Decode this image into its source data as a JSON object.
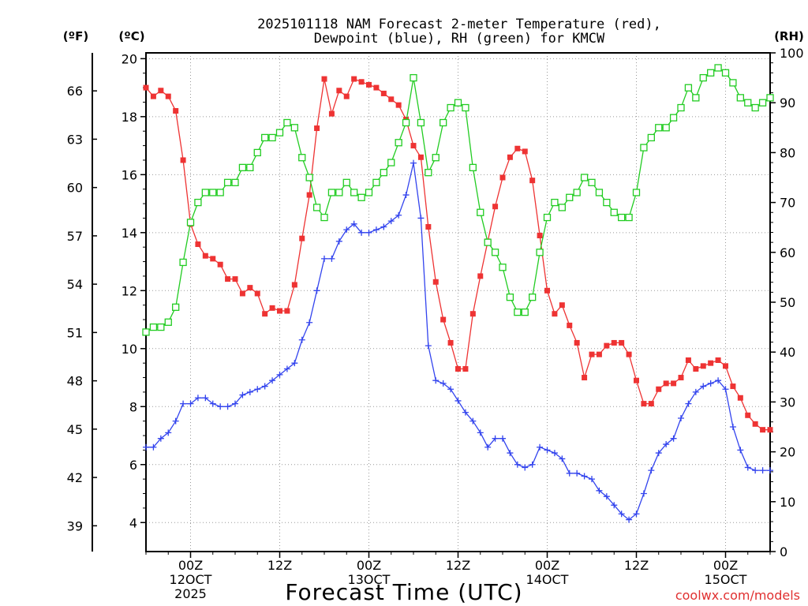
{
  "chart_data": {
    "type": "line",
    "title_line1": "2025101118 NAM Forecast 2-meter Temperature (red),",
    "title_line2": "Dewpoint (blue), RH (green) for KMCW",
    "xlabel": "Forecast Time (UTC)",
    "credit": "coolwx.com/models",
    "unit_f": "(ºF)",
    "unit_c": "(ºC)",
    "unit_rh": "(RH)",
    "forecast_hour_range": [
      0,
      84
    ],
    "ylim_c": [
      3.0,
      20.2
    ],
    "ylim_rh": [
      0,
      100
    ],
    "yticks_c": [
      "4",
      "6",
      "8",
      "10",
      "12",
      "14",
      "16",
      "18",
      "20"
    ],
    "yticks_f": [
      "39",
      "42",
      "45",
      "48",
      "51",
      "54",
      "57",
      "60",
      "63",
      "66"
    ],
    "yticks_rh": [
      "0",
      "10",
      "20",
      "30",
      "40",
      "50",
      "60",
      "70",
      "80",
      "90",
      "100"
    ],
    "xticks": [
      {
        "hour": 6,
        "lines": [
          "00Z",
          "12OCT",
          "2025"
        ]
      },
      {
        "hour": 18,
        "lines": [
          "12Z"
        ]
      },
      {
        "hour": 30,
        "lines": [
          "00Z",
          "13OCT"
        ]
      },
      {
        "hour": 42,
        "lines": [
          "12Z"
        ]
      },
      {
        "hour": 54,
        "lines": [
          "00Z",
          "14OCT"
        ]
      },
      {
        "hour": 66,
        "lines": [
          "12Z"
        ]
      },
      {
        "hour": 78,
        "lines": [
          "00Z",
          "15OCT"
        ]
      }
    ],
    "series": [
      {
        "name": "Temperature (°C)",
        "color": "#ee3333",
        "marker": "square-filled",
        "axis": "C",
        "values": [
          19.0,
          18.7,
          18.9,
          18.7,
          18.2,
          16.5,
          14.3,
          13.6,
          13.2,
          13.1,
          12.9,
          12.4,
          12.4,
          11.9,
          12.1,
          11.9,
          11.2,
          11.4,
          11.3,
          11.3,
          12.2,
          13.8,
          15.3,
          17.6,
          19.3,
          18.1,
          18.9,
          18.7,
          19.3,
          19.2,
          19.1,
          19.0,
          18.8,
          18.6,
          18.4,
          17.9,
          17.0,
          16.6,
          14.2,
          12.3,
          11.0,
          10.2,
          9.3,
          9.3,
          11.2,
          12.5,
          13.7,
          14.9,
          15.9,
          16.6,
          16.9,
          16.8,
          15.8,
          13.9,
          12.0,
          11.2,
          11.5,
          10.8,
          10.2,
          9.0,
          9.8,
          9.8,
          10.1,
          10.2,
          10.2,
          9.8,
          8.9,
          8.1,
          8.1,
          8.6,
          8.8,
          8.8,
          9.0,
          9.6,
          9.3,
          9.4,
          9.5,
          9.6,
          9.4,
          8.7,
          8.3,
          7.7,
          7.4,
          7.2,
          7.2
        ]
      },
      {
        "name": "Dewpoint (°C)",
        "color": "#3344ee",
        "marker": "plus",
        "axis": "C",
        "values": [
          6.6,
          6.6,
          6.9,
          7.1,
          7.5,
          8.1,
          8.1,
          8.3,
          8.3,
          8.1,
          8.0,
          8.0,
          8.1,
          8.4,
          8.5,
          8.6,
          8.7,
          8.9,
          9.1,
          9.3,
          9.5,
          10.3,
          10.9,
          12.0,
          13.1,
          13.1,
          13.7,
          14.1,
          14.3,
          14.0,
          14.0,
          14.1,
          14.2,
          14.4,
          14.6,
          15.3,
          16.4,
          14.5,
          10.1,
          8.9,
          8.8,
          8.6,
          8.2,
          7.8,
          7.5,
          7.1,
          6.6,
          6.9,
          6.9,
          6.4,
          6.0,
          5.9,
          6.0,
          6.6,
          6.5,
          6.4,
          6.2,
          5.7,
          5.7,
          5.6,
          5.5,
          5.1,
          4.9,
          4.6,
          4.3,
          4.1,
          4.3,
          5.0,
          5.8,
          6.4,
          6.7,
          6.9,
          7.6,
          8.1,
          8.5,
          8.7,
          8.8,
          8.9,
          8.6,
          7.3,
          6.5,
          5.9,
          5.8,
          5.8,
          5.8
        ]
      },
      {
        "name": "Relative Humidity (%)",
        "color": "#22cc22",
        "marker": "square-open",
        "axis": "RH",
        "values": [
          44,
          45,
          45,
          46,
          49,
          58,
          66,
          70,
          72,
          72,
          72,
          74,
          74,
          77,
          77,
          80,
          83,
          83,
          84,
          86,
          85,
          79,
          75,
          69,
          67,
          72,
          72,
          74,
          72,
          71,
          72,
          74,
          76,
          78,
          82,
          86,
          95,
          86,
          76,
          79,
          86,
          89,
          90,
          89,
          77,
          68,
          62,
          60,
          57,
          51,
          48,
          48,
          51,
          60,
          67,
          70,
          69,
          71,
          72,
          75,
          74,
          72,
          70,
          68,
          67,
          67,
          72,
          81,
          83,
          85,
          85,
          87,
          89,
          93,
          91,
          95,
          96,
          97,
          96,
          94,
          91,
          90,
          89,
          90,
          91
        ]
      }
    ]
  }
}
